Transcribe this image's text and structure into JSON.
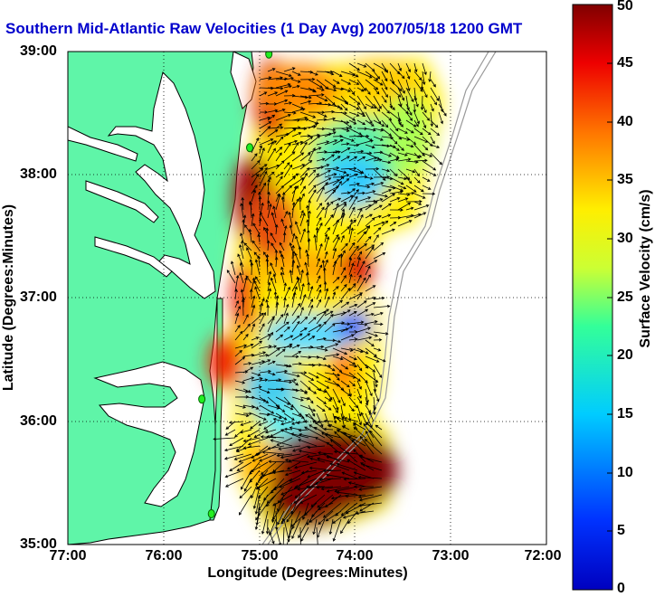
{
  "title": "Southern Mid-Atlantic Raw Velocities (1 Day Avg) 2007/05/18 1200 GMT",
  "colors": {
    "title": "#0000cc",
    "land": "#5ff5a8",
    "ocean": "#ffffff",
    "coast": "#000000"
  },
  "axes": {
    "xlabel": "Longitude (Degrees:Minutes)",
    "ylabel": "Latitude (Degrees:Minutes)",
    "x_ticks": [
      "77:00",
      "76:00",
      "75:00",
      "74:00",
      "73:00",
      "72:00"
    ],
    "y_ticks": [
      "39:00",
      "38:00",
      "37:00",
      "36:00",
      "35:00"
    ],
    "x_range": [
      -77,
      -72
    ],
    "y_range": [
      35,
      39
    ],
    "grid": "dotted"
  },
  "colorbar": {
    "label": "Surface Velocity (cm/s)",
    "min": 0,
    "max": 50,
    "ticks": [
      "50",
      "45",
      "40",
      "35",
      "30",
      "25",
      "20",
      "15",
      "10",
      "5",
      "0"
    ],
    "colormap": "jet"
  },
  "stations": [
    {
      "lon": -74.9,
      "lat": 38.98
    },
    {
      "lon": -75.1,
      "lat": 38.22
    },
    {
      "lon": -75.6,
      "lat": 36.18
    },
    {
      "lon": -75.5,
      "lat": 35.25
    }
  ]
}
